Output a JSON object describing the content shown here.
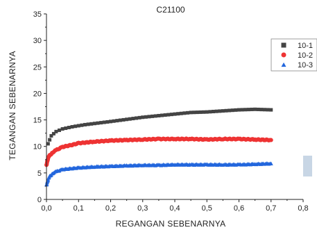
{
  "chart_data": {
    "type": "scatter",
    "title": "C21100",
    "xlabel": "REGANGAN SEBENARNYA",
    "ylabel": "TEGANGAN SEBENARNYA",
    "xlim": [
      0,
      0.8
    ],
    "ylim": [
      0,
      35
    ],
    "x_ticks": [
      "0,0",
      "0,1",
      "0,2",
      "0,3",
      "0,4",
      "0,5",
      "0,6",
      "0,7",
      "0,8"
    ],
    "y_ticks": [
      "0",
      "5",
      "10",
      "15",
      "20",
      "25",
      "30",
      "35"
    ],
    "grid": false,
    "legend_position": "top-right",
    "series": [
      {
        "name": "10-1",
        "color": "#444444",
        "marker": "square",
        "x": [
          0.005,
          0.015,
          0.03,
          0.05,
          0.08,
          0.12,
          0.16,
          0.2,
          0.25,
          0.3,
          0.35,
          0.4,
          0.45,
          0.5,
          0.55,
          0.6,
          0.65,
          0.7
        ],
        "y": [
          10.5,
          12.0,
          12.8,
          13.3,
          13.7,
          14.1,
          14.4,
          14.7,
          15.1,
          15.5,
          15.8,
          16.1,
          16.4,
          16.5,
          16.7,
          16.9,
          17.0,
          16.9
        ]
      },
      {
        "name": "10-2",
        "color": "#ee3333",
        "marker": "circle",
        "x": [
          0.0,
          0.005,
          0.01,
          0.02,
          0.03,
          0.05,
          0.08,
          0.1,
          0.15,
          0.2,
          0.25,
          0.3,
          0.35,
          0.4,
          0.45,
          0.5,
          0.55,
          0.6,
          0.65,
          0.7
        ],
        "y": [
          6.5,
          7.8,
          8.3,
          8.9,
          9.3,
          9.9,
          10.3,
          10.6,
          10.9,
          11.1,
          11.2,
          11.3,
          11.4,
          11.4,
          11.4,
          11.3,
          11.4,
          11.4,
          11.3,
          11.2
        ]
      },
      {
        "name": "10-3",
        "color": "#2266dd",
        "marker": "triangle",
        "x": [
          0.0,
          0.005,
          0.01,
          0.02,
          0.03,
          0.05,
          0.08,
          0.1,
          0.15,
          0.2,
          0.25,
          0.3,
          0.35,
          0.4,
          0.45,
          0.5,
          0.55,
          0.6,
          0.65,
          0.7
        ],
        "y": [
          2.8,
          3.8,
          4.4,
          5.0,
          5.3,
          5.7,
          5.9,
          6.0,
          6.2,
          6.3,
          6.4,
          6.5,
          6.5,
          6.6,
          6.6,
          6.6,
          6.6,
          6.6,
          6.7,
          6.8
        ]
      }
    ]
  }
}
